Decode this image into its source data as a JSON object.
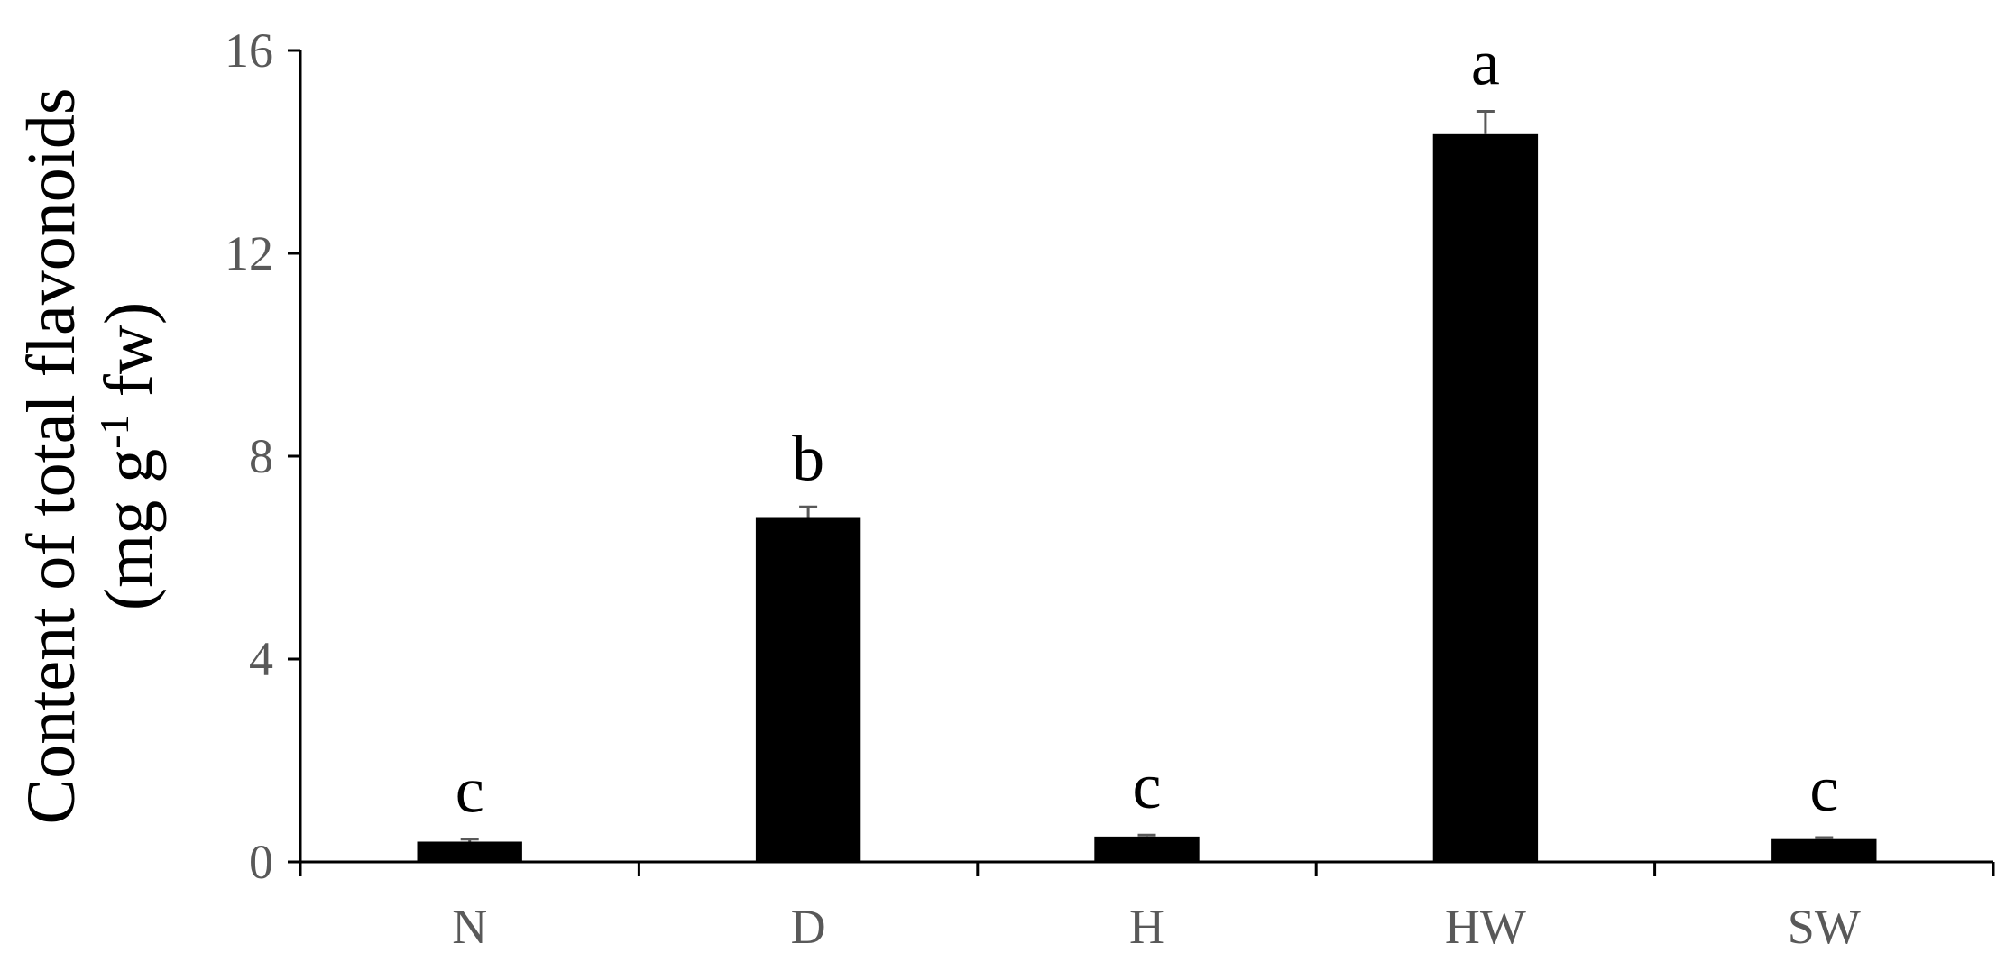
{
  "chart_data": {
    "type": "bar",
    "categories": [
      "N",
      "D",
      "H",
      "HW",
      "SW"
    ],
    "values": [
      0.4,
      6.8,
      0.5,
      14.35,
      0.45
    ],
    "errors": [
      0.05,
      0.2,
      0.03,
      0.45,
      0.03
    ],
    "significance_letters": [
      "c",
      "b",
      "c",
      "a",
      "c"
    ],
    "ylabel_line1": "Content of total flavonoids",
    "ylabel_line2_prefix": "(mg g",
    "ylabel_line2_superscript": "-1",
    "ylabel_line2_suffix": " fw)",
    "ylim": [
      0,
      16
    ],
    "yticks": [
      0,
      4,
      8,
      12,
      16
    ],
    "yticks_labels": [
      "0",
      "4",
      "8",
      "12",
      "16"
    ],
    "grid": false,
    "bar_color": "#000000",
    "axis_color": "#000000",
    "tick_label_color": "#595959",
    "error_bar_color": "#595959"
  }
}
